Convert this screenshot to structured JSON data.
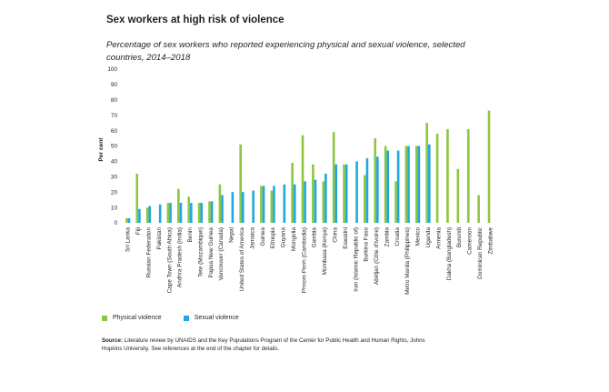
{
  "title": "Sex workers at high risk of violence",
  "subtitle": "Percentage of sex workers who reported experiencing physical and sexual violence, selected countries, 2014–2018",
  "source_label": "Source:",
  "source_text": "Literature review by UNAIDS and the Key Populations Program of the Center for Public Health and Human Rights, Johns Hopkins University. See references at the end of the chapter for details.",
  "chart_data": {
    "type": "bar",
    "ylabel": "Per cent",
    "ylim": [
      0,
      100
    ],
    "yticks": [
      0,
      10,
      20,
      30,
      40,
      50,
      60,
      70,
      80,
      90,
      100
    ],
    "grid": false,
    "legend_position": "bottom-left",
    "categories": [
      "Sri Lanka",
      "Fiji",
      "Russian Federation",
      "Pakistan",
      "Cape Town (South Africa)",
      "Andhra Pradesh (India)",
      "Benin",
      "Tete (Mozambique)",
      "Papua New Guinea",
      "Vancouver (Canada)",
      "Nepal",
      "United States of America",
      "Jamaica",
      "Guinea",
      "Ethiopia",
      "Guyana",
      "Mongolia",
      "Phnom Penh (Cambodia)",
      "Gambia",
      "Mombasa (Kenya)",
      "China",
      "Eswatini",
      "Iran (Islamic Republic of)",
      "Burkina Faso",
      "Abidjan (Côte d'Ivoire)",
      "Zambia",
      "Croatia",
      "Metro Manila (Philippines)",
      "Mexico",
      "Uganda",
      "Armenia",
      "Dakha (Bangladesh)",
      "Burundi",
      "Cameroon",
      "Dominican Republic",
      "Zimbabwe"
    ],
    "series": [
      {
        "name": "Physical violence",
        "color": "#8dc63f",
        "values": [
          3,
          32,
          10,
          null,
          13,
          22,
          17,
          13,
          14,
          25,
          null,
          51,
          null,
          24,
          21,
          null,
          39,
          57,
          38,
          27,
          59,
          38,
          null,
          31,
          55,
          50,
          27,
          50,
          50,
          65,
          58,
          61,
          35,
          61,
          18,
          73
        ]
      },
      {
        "name": "Sexual violence",
        "color": "#1fa8e0",
        "values": [
          3,
          9,
          11,
          12,
          13,
          13,
          13,
          13,
          14,
          18,
          20,
          20,
          21,
          24,
          24,
          25,
          25,
          27,
          28,
          32,
          38,
          38,
          40,
          42,
          43,
          47,
          47,
          50,
          50,
          51,
          null,
          null,
          null,
          null,
          null,
          null
        ]
      }
    ]
  }
}
